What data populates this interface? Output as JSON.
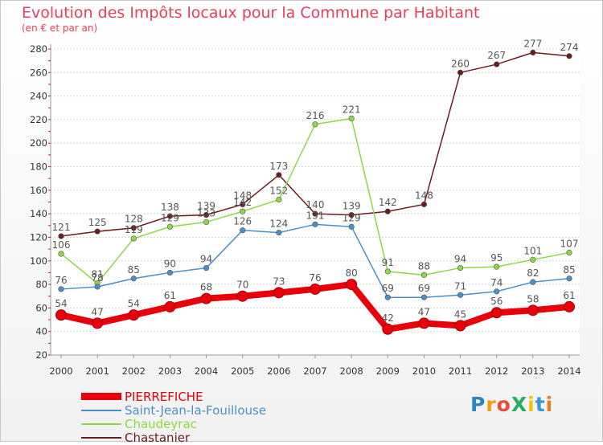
{
  "title": "Evolution des Impôts locaux pour la Commune par Habitant",
  "subtitle": "(en € et par an)",
  "logo": {
    "text": "ProXiti",
    "colors": [
      "#2e86c1",
      "#f39c12",
      "#e74c3c",
      "#27ae60",
      "#f1c40f",
      "#3498db",
      "#e67e22"
    ]
  },
  "chart_data": {
    "type": "line",
    "title": "Evolution des Impôts locaux pour la Commune par Habitant",
    "subtitle": "(en € et par an)",
    "x": [
      2000,
      2001,
      2002,
      2003,
      2004,
      2005,
      2006,
      2007,
      2008,
      2009,
      2010,
      2011,
      2012,
      2013,
      2014
    ],
    "ylim": [
      20,
      280
    ],
    "yticks": [
      20,
      40,
      60,
      80,
      100,
      120,
      140,
      160,
      180,
      200,
      220,
      240,
      260,
      280
    ],
    "grid": true,
    "legend_position": "bottom-left",
    "series": [
      {
        "name": "PIERREFICHE",
        "color": "#e8000b",
        "values": [
          54,
          47,
          54,
          61,
          68,
          70,
          73,
          76,
          80,
          42,
          47,
          45,
          56,
          58,
          61
        ]
      },
      {
        "name": "Saint-Jean-la-Fouillouse",
        "color": "#4a90c8",
        "values": [
          76,
          78,
          85,
          90,
          94,
          126,
          124,
          131,
          129,
          69,
          69,
          71,
          74,
          82,
          85
        ]
      },
      {
        "name": "Chaudeyrac",
        "color": "#8ed846",
        "values": [
          106,
          81,
          119,
          129,
          133,
          142,
          152,
          216,
          221,
          91,
          88,
          94,
          95,
          101,
          107
        ]
      },
      {
        "name": "Chastanier",
        "color": "#6b1c1c",
        "values": [
          121,
          125,
          128,
          138,
          139,
          148,
          173,
          140,
          139,
          142,
          148,
          260,
          267,
          277,
          274
        ]
      }
    ]
  }
}
